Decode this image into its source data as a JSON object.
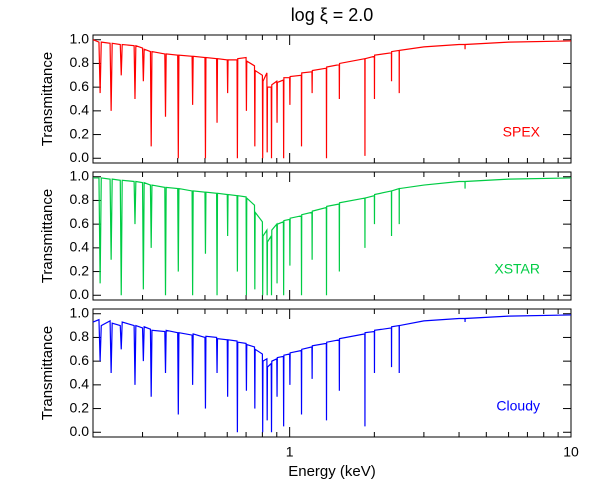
{
  "chart_data": [
    {
      "type": "line",
      "title": "log ξ = 2.0",
      "ylabel": "Transmittance",
      "xlog": true,
      "xlim": [
        0.2,
        10
      ],
      "ylim": [
        -0.04,
        1.04
      ],
      "yticks": [
        {
          "value": 0,
          "label": "0.0"
        },
        {
          "value": 0.2,
          "label": "0.2"
        },
        {
          "value": 0.4,
          "label": "0.4"
        },
        {
          "value": 0.6,
          "label": "0.6"
        },
        {
          "value": 0.8,
          "label": "0.8"
        },
        {
          "value": 1,
          "label": "1.0"
        }
      ],
      "x": [
        0.2,
        0.21,
        0.212,
        0.214,
        0.23,
        0.232,
        0.234,
        0.25,
        0.252,
        0.254,
        0.28,
        0.282,
        0.284,
        0.3,
        0.302,
        0.304,
        0.32,
        0.322,
        0.324,
        0.36,
        0.362,
        0.364,
        0.4,
        0.402,
        0.404,
        0.45,
        0.452,
        0.454,
        0.5,
        0.502,
        0.504,
        0.55,
        0.552,
        0.554,
        0.6,
        0.602,
        0.604,
        0.65,
        0.652,
        0.654,
        0.7,
        0.702,
        0.704,
        0.75,
        0.752,
        0.754,
        0.8,
        0.802,
        0.804,
        0.83,
        0.832,
        0.834,
        0.86,
        0.862,
        0.864,
        0.9,
        0.902,
        0.904,
        0.95,
        0.952,
        0.954,
        1.0,
        1.002,
        1.004,
        1.1,
        1.102,
        1.104,
        1.2,
        1.202,
        1.204,
        1.35,
        1.352,
        1.354,
        1.5,
        1.502,
        1.504,
        1.85,
        1.852,
        1.854,
        2.0,
        2.002,
        2.004,
        2.3,
        2.302,
        2.304,
        2.45,
        2.452,
        2.454,
        3.0,
        4.0,
        4.2,
        4.202,
        4.204,
        6.0,
        10
      ],
      "series": [
        {
          "name": "SPEX",
          "color": "#ff0000",
          "values": [
            1.0,
            0.98,
            0.55,
            0.98,
            0.97,
            0.4,
            0.97,
            0.96,
            0.7,
            0.96,
            0.95,
            0.5,
            0.95,
            0.93,
            0.65,
            0.92,
            0.9,
            0.1,
            0.9,
            0.88,
            0.35,
            0.88,
            0.87,
            0.0,
            0.87,
            0.86,
            0.45,
            0.86,
            0.85,
            0.0,
            0.85,
            0.84,
            0.3,
            0.84,
            0.83,
            0.55,
            0.83,
            0.83,
            0.0,
            0.84,
            0.85,
            0.4,
            0.82,
            0.78,
            0.1,
            0.74,
            0.7,
            0.0,
            0.65,
            0.72,
            0.05,
            0.6,
            0.6,
            0.0,
            0.62,
            0.65,
            0.3,
            0.64,
            0.66,
            0.0,
            0.68,
            0.68,
            0.45,
            0.69,
            0.7,
            0.1,
            0.72,
            0.73,
            0.55,
            0.74,
            0.76,
            0.0,
            0.77,
            0.79,
            0.5,
            0.8,
            0.84,
            0.02,
            0.84,
            0.86,
            0.5,
            0.87,
            0.89,
            0.65,
            0.9,
            0.91,
            0.55,
            0.91,
            0.94,
            0.96,
            0.96,
            0.92,
            0.96,
            0.98,
            0.99
          ]
        }
      ]
    },
    {
      "type": "line",
      "ylabel": "Transmittance",
      "xlog": true,
      "xlim": [
        0.2,
        10
      ],
      "ylim": [
        -0.04,
        1.04
      ],
      "yticks": [
        {
          "value": 0,
          "label": "0.0"
        },
        {
          "value": 0.2,
          "label": "0.2"
        },
        {
          "value": 0.4,
          "label": "0.4"
        },
        {
          "value": 0.6,
          "label": "0.6"
        },
        {
          "value": 0.8,
          "label": "0.8"
        },
        {
          "value": 1,
          "label": "1.0"
        }
      ],
      "x": [
        0.2,
        0.21,
        0.212,
        0.214,
        0.23,
        0.232,
        0.234,
        0.25,
        0.252,
        0.254,
        0.28,
        0.282,
        0.284,
        0.3,
        0.302,
        0.304,
        0.32,
        0.322,
        0.324,
        0.36,
        0.362,
        0.364,
        0.4,
        0.402,
        0.404,
        0.45,
        0.452,
        0.454,
        0.5,
        0.502,
        0.504,
        0.55,
        0.552,
        0.554,
        0.6,
        0.602,
        0.604,
        0.65,
        0.652,
        0.654,
        0.7,
        0.702,
        0.704,
        0.75,
        0.752,
        0.754,
        0.8,
        0.802,
        0.804,
        0.83,
        0.832,
        0.834,
        0.86,
        0.862,
        0.864,
        0.9,
        0.902,
        0.904,
        0.95,
        0.952,
        0.954,
        1.0,
        1.002,
        1.004,
        1.1,
        1.102,
        1.104,
        1.2,
        1.202,
        1.204,
        1.35,
        1.352,
        1.354,
        1.5,
        1.502,
        1.504,
        1.85,
        1.852,
        1.854,
        2.0,
        2.002,
        2.004,
        2.3,
        2.302,
        2.304,
        2.45,
        2.452,
        2.454,
        3.0,
        4.0,
        4.2,
        4.202,
        4.204,
        6.0,
        10
      ],
      "series": [
        {
          "name": "XSTAR",
          "color": "#00cc44",
          "values": [
            0.99,
            0.99,
            0.1,
            0.99,
            0.98,
            0.3,
            0.98,
            0.97,
            0.0,
            0.97,
            0.96,
            0.6,
            0.96,
            0.95,
            0.05,
            0.95,
            0.93,
            0.4,
            0.93,
            0.91,
            0.0,
            0.91,
            0.9,
            0.2,
            0.9,
            0.88,
            0.0,
            0.88,
            0.87,
            0.35,
            0.87,
            0.86,
            0.0,
            0.86,
            0.85,
            0.5,
            0.85,
            0.84,
            0.2,
            0.84,
            0.83,
            0.0,
            0.82,
            0.76,
            0.05,
            0.7,
            0.62,
            0.0,
            0.5,
            0.55,
            0.0,
            0.45,
            0.5,
            0.0,
            0.55,
            0.6,
            0.1,
            0.6,
            0.62,
            0.0,
            0.63,
            0.64,
            0.25,
            0.65,
            0.67,
            0.0,
            0.68,
            0.7,
            0.3,
            0.71,
            0.74,
            0.0,
            0.75,
            0.77,
            0.2,
            0.78,
            0.82,
            0.4,
            0.82,
            0.84,
            0.6,
            0.85,
            0.88,
            0.5,
            0.88,
            0.9,
            0.6,
            0.9,
            0.93,
            0.96,
            0.96,
            0.9,
            0.96,
            0.98,
            0.99
          ]
        }
      ]
    },
    {
      "type": "line",
      "ylabel": "Transmittance",
      "xlabel": "Energy (keV)",
      "xlog": true,
      "xlim": [
        0.2,
        10
      ],
      "ylim": [
        -0.04,
        1.04
      ],
      "xticks": [
        1,
        10
      ],
      "xminorticks": [
        0.2,
        0.3,
        0.4,
        0.5,
        0.6,
        0.7,
        0.8,
        0.9,
        2,
        3,
        4,
        5,
        6,
        7,
        8,
        9
      ],
      "yticks": [
        {
          "value": 0,
          "label": "0.0"
        },
        {
          "value": 0.2,
          "label": "0.2"
        },
        {
          "value": 0.4,
          "label": "0.4"
        },
        {
          "value": 0.6,
          "label": "0.6"
        },
        {
          "value": 0.8,
          "label": "0.8"
        },
        {
          "value": 1,
          "label": "1.0"
        }
      ],
      "x": [
        0.2,
        0.21,
        0.212,
        0.214,
        0.23,
        0.232,
        0.234,
        0.25,
        0.252,
        0.254,
        0.28,
        0.282,
        0.284,
        0.3,
        0.302,
        0.304,
        0.32,
        0.322,
        0.324,
        0.36,
        0.362,
        0.364,
        0.4,
        0.402,
        0.404,
        0.45,
        0.452,
        0.454,
        0.5,
        0.502,
        0.504,
        0.55,
        0.552,
        0.554,
        0.6,
        0.602,
        0.604,
        0.65,
        0.652,
        0.654,
        0.7,
        0.702,
        0.704,
        0.75,
        0.752,
        0.754,
        0.8,
        0.802,
        0.804,
        0.83,
        0.832,
        0.834,
        0.86,
        0.862,
        0.864,
        0.9,
        0.902,
        0.904,
        0.95,
        0.952,
        0.954,
        1.0,
        1.002,
        1.004,
        1.1,
        1.102,
        1.104,
        1.2,
        1.202,
        1.204,
        1.35,
        1.352,
        1.354,
        1.5,
        1.502,
        1.504,
        1.85,
        1.852,
        1.854,
        2.0,
        2.002,
        2.004,
        2.3,
        2.302,
        2.304,
        2.45,
        2.452,
        2.454,
        3.0,
        4.0,
        4.2,
        4.202,
        4.204,
        6.0,
        10
      ],
      "series": [
        {
          "name": "Cloudy",
          "color": "#0000ff",
          "values": [
            0.93,
            0.95,
            0.6,
            0.9,
            0.94,
            0.5,
            0.92,
            0.9,
            0.7,
            0.93,
            0.9,
            0.4,
            0.9,
            0.88,
            0.6,
            0.89,
            0.87,
            0.3,
            0.86,
            0.85,
            0.5,
            0.86,
            0.84,
            0.15,
            0.84,
            0.82,
            0.4,
            0.83,
            0.8,
            0.2,
            0.81,
            0.8,
            0.5,
            0.79,
            0.78,
            0.3,
            0.78,
            0.77,
            0.0,
            0.76,
            0.75,
            0.35,
            0.74,
            0.72,
            0.2,
            0.7,
            0.66,
            0.0,
            0.6,
            0.62,
            0.1,
            0.55,
            0.58,
            0.0,
            0.6,
            0.62,
            0.3,
            0.63,
            0.64,
            0.05,
            0.65,
            0.66,
            0.4,
            0.67,
            0.69,
            0.15,
            0.7,
            0.72,
            0.45,
            0.73,
            0.75,
            0.1,
            0.76,
            0.78,
            0.35,
            0.79,
            0.83,
            0.05,
            0.84,
            0.85,
            0.5,
            0.86,
            0.88,
            0.55,
            0.89,
            0.9,
            0.5,
            0.9,
            0.94,
            0.96,
            0.96,
            0.93,
            0.96,
            0.98,
            0.99
          ]
        }
      ]
    }
  ]
}
